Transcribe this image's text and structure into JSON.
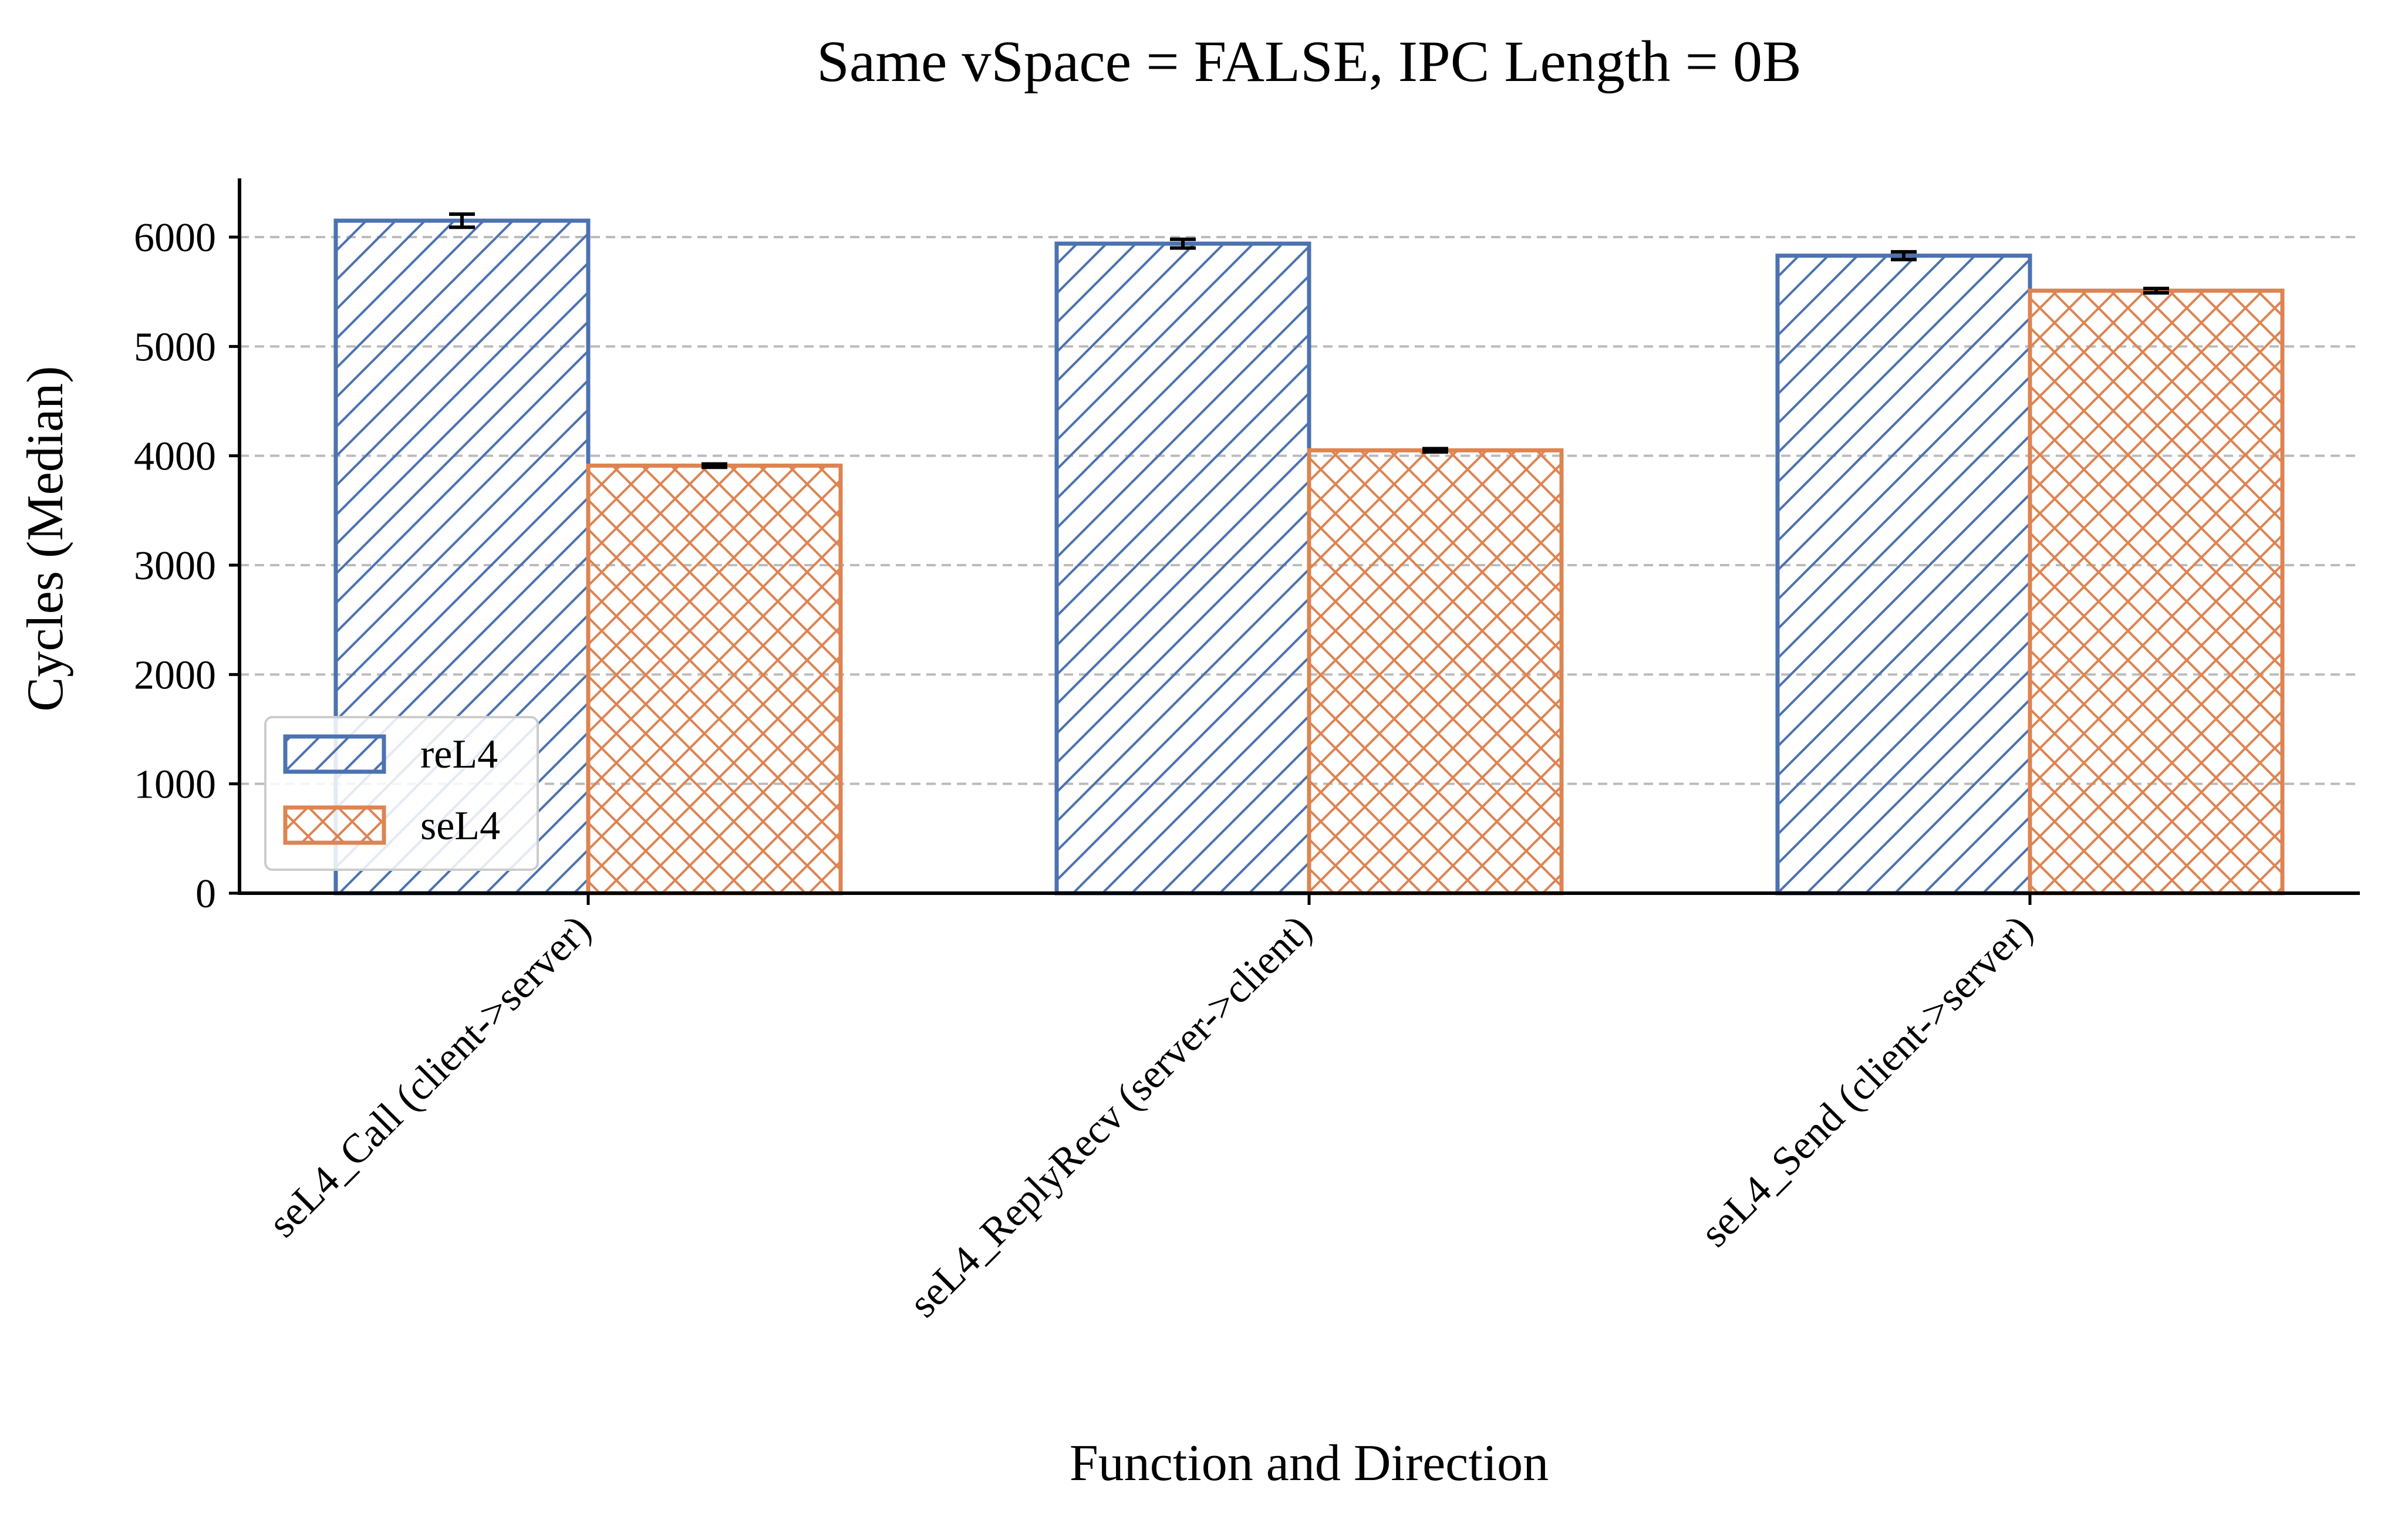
{
  "chart_data": {
    "type": "bar",
    "title": "Same vSpace = FALSE, IPC Length = 0B",
    "xlabel": "Function and Direction",
    "ylabel": "Cycles (Median)",
    "categories": [
      "seL4_Call (client->server)",
      "seL4_ReplyRecv (server->client)",
      "seL4_Send (client->server)"
    ],
    "series": [
      {
        "name": "reL4",
        "color": "#4c72b0",
        "hatch": "diagonal",
        "values": [
          6150,
          5940,
          5830
        ],
        "errors": [
          60,
          40,
          35
        ]
      },
      {
        "name": "seL4",
        "color": "#dd8452",
        "hatch": "crosshatch",
        "values": [
          3910,
          4050,
          5510
        ],
        "errors": [
          15,
          15,
          20
        ]
      }
    ],
    "ylim": [
      0,
      6550
    ],
    "yticks": [
      0,
      1000,
      2000,
      3000,
      4000,
      5000,
      6000
    ],
    "grid": "y-dashed",
    "legend_position": "lower-left"
  }
}
